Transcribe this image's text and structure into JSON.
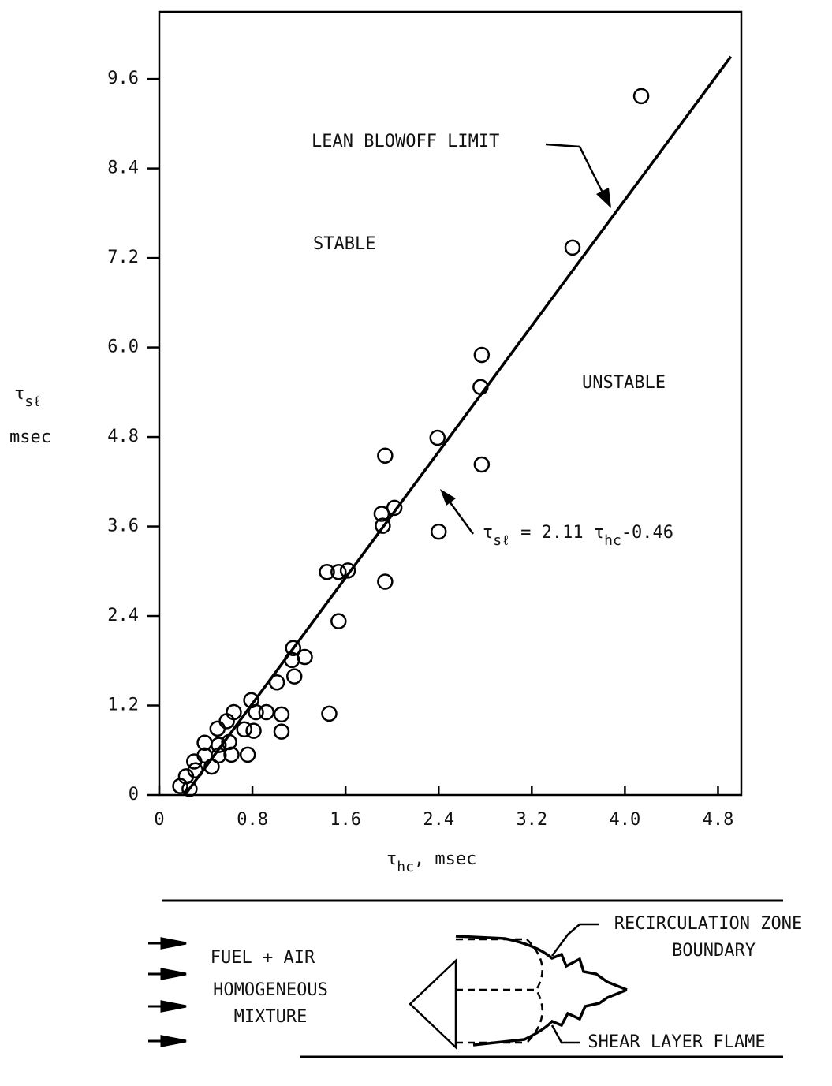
{
  "chart_data": {
    "type": "scatter",
    "series": [
      {
        "color": "#000000",
        "x": [
          4.14,
          3.55,
          2.77,
          2.76,
          2.77,
          2.39,
          2.4,
          1.94,
          1.91,
          1.92,
          2.02,
          1.94,
          1.44,
          1.54,
          1.62,
          1.54,
          1.46,
          1.15,
          1.25,
          1.14,
          1.16,
          1.01,
          1.05,
          1.05,
          0.92,
          0.83,
          0.79,
          0.81,
          0.76,
          0.73,
          0.64,
          0.58,
          0.6,
          0.62,
          0.5,
          0.51,
          0.51,
          0.39,
          0.39,
          0.45,
          0.3,
          0.31,
          0.23,
          0.18,
          0.26
        ],
        "values": [
          9.37,
          7.34,
          5.9,
          5.47,
          4.43,
          4.79,
          3.53,
          4.55,
          3.77,
          3.61,
          3.85,
          2.86,
          2.99,
          2.99,
          3.01,
          2.33,
          1.09,
          1.97,
          1.85,
          1.81,
          1.59,
          1.51,
          1.08,
          0.85,
          1.11,
          1.11,
          1.27,
          0.86,
          0.54,
          0.88,
          1.11,
          0.99,
          0.71,
          0.54,
          0.89,
          0.67,
          0.53,
          0.7,
          0.53,
          0.38,
          0.45,
          0.33,
          0.25,
          0.12,
          0.08
        ]
      }
    ],
    "fit_line": {
      "color": "#000000",
      "x": [
        0.22,
        4.91
      ],
      "values": [
        0,
        9.9
      ]
    },
    "xlim": [
      0,
      5.0
    ],
    "ylim": [
      0,
      10.5
    ],
    "xticks": [
      0,
      0.8,
      1.6,
      2.4,
      3.2,
      {
        "value": 4.0,
        "label": "4.0"
      },
      4.8
    ],
    "yticks": [
      0,
      1.2,
      2.4,
      3.6,
      4.8,
      {
        "value": 6.0,
        "label": "6.0"
      },
      7.2,
      8.4,
      9.6
    ],
    "x_label": [
      "τ",
      "hc",
      ", msec"
    ],
    "y_label": [
      "τ",
      "sℓ",
      "msec"
    ],
    "annotations": {
      "limit": "LEAN BLOWOFF LIMIT",
      "stable": "STABLE",
      "unstable": "UNSTABLE",
      "equation": [
        "τ",
        "sℓ",
        " = 2.11 τ",
        "hc",
        "-0.46"
      ]
    }
  },
  "diagram": {
    "inlet_labels": [
      "FUEL + AIR",
      "HOMOGENEOUS",
      "MIXTURE"
    ],
    "recirculation_label": [
      "RECIRCULATION ZONE",
      "BOUNDARY"
    ],
    "flame_label": "SHEAR LAYER FLAME"
  }
}
